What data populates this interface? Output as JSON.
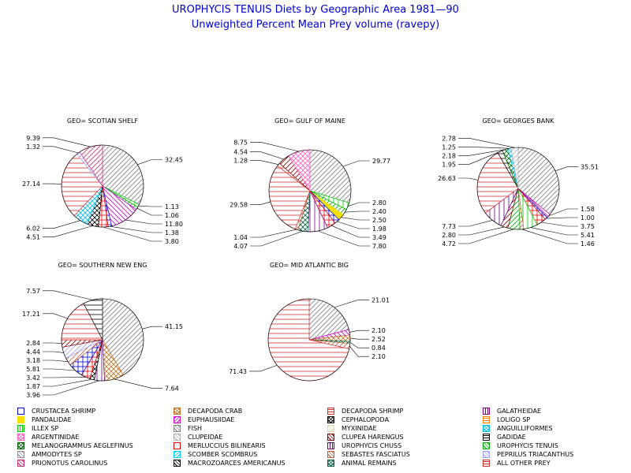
{
  "title": "UROPHYCIS TENUIS Diets by Geographic Area 1981—90",
  "subtitle": "Unweighted Percent Mean Prey volume (ravepy)",
  "categories": [
    {
      "name": "CRUSTACEA SHRIMP",
      "color": "#0000cc",
      "pattern": "box"
    },
    {
      "name": "DECAPODA CRAB",
      "color": "#c07020",
      "pattern": "cross-diag"
    },
    {
      "name": "DECAPODA SHRIMP",
      "color": "#d03030",
      "pattern": "horiz"
    },
    {
      "name": "GALATHEIDAE",
      "color": "#800080",
      "pattern": "vert"
    },
    {
      "name": "PANDALIDAE",
      "color": "#f5e000",
      "pattern": "solid"
    },
    {
      "name": "EUPHAUSIIDAE",
      "color": "#cc00cc",
      "pattern": "diag-back"
    },
    {
      "name": "CEPHALOPODA",
      "color": "#000000",
      "pattern": "cross-diag"
    },
    {
      "name": "LOLIGO SP",
      "color": "#ff8000",
      "pattern": "horiz"
    },
    {
      "name": "ILLEX SP",
      "color": "#00cc00",
      "pattern": "vert"
    },
    {
      "name": "FISH",
      "color": "#808080",
      "pattern": "diag-fwd"
    },
    {
      "name": "MYXINIDAE",
      "color": "#e0e0a0",
      "pattern": "diag-back"
    },
    {
      "name": "ANGUILLIFORMES",
      "color": "#00bbee",
      "pattern": "cross-diag"
    },
    {
      "name": "ARGENTINIDAE",
      "color": "#ff60c0",
      "pattern": "cross-diag"
    },
    {
      "name": "CLUPEIDAE",
      "color": "#b0b0b0",
      "pattern": "diag-fwd"
    },
    {
      "name": "CLUPEA HARENGUS",
      "color": "#800000",
      "pattern": "diag-fwd"
    },
    {
      "name": "GADIDAE",
      "color": "#000000",
      "pattern": "horiz"
    },
    {
      "name": "MELANOGRAMMUS AEGLEFINUS",
      "color": "#006000",
      "pattern": "cross-diag"
    },
    {
      "name": "MERLUCCIUS BILINEARIS",
      "color": "#e00000",
      "pattern": "box"
    },
    {
      "name": "UROPHYCIS CHUSS",
      "color": "#600080",
      "pattern": "vert"
    },
    {
      "name": "UROPHYCIS TENUIS",
      "color": "#00aa00",
      "pattern": "diag-fwd"
    },
    {
      "name": "AMMODYTES SP",
      "color": "#909090",
      "pattern": "diag-fwd"
    },
    {
      "name": "SCOMBER SCOMBRUS",
      "color": "#00ccff",
      "pattern": "diag-back"
    },
    {
      "name": "SEBASTES FASCIATUS",
      "color": "#c06040",
      "pattern": "diag-fwd"
    },
    {
      "name": "PEPRILUS TRIACANTHUS",
      "color": "#a0a0ff",
      "pattern": "diag-fwd"
    },
    {
      "name": "PRIONOTUS CAROLINUS",
      "color": "#cc3070",
      "pattern": "diag-fwd"
    },
    {
      "name": "MACROZOARCES AMERICANUS",
      "color": "#000000",
      "pattern": "diag-fwd"
    },
    {
      "name": "ANIMAL REMAINS",
      "color": "#006040",
      "pattern": "cross-diag"
    },
    {
      "name": "ALL OTHER PREY",
      "color": "#d03030",
      "pattern": "horiz"
    }
  ],
  "chart_data": [
    {
      "type": "pie",
      "title": "GEO= SCOTIAN SHELF",
      "slices": [
        {
          "category": "FISH",
          "value": 32.45,
          "label": "32.45"
        },
        {
          "category": "ILLEX SP",
          "value": 1.13,
          "label": "1.13"
        },
        {
          "category": "UROPHYCIS TENUIS",
          "value": 1.06,
          "label": "1.06"
        },
        {
          "category": "EUPHAUSIIDAE",
          "value": 11.8,
          "label": "11.80"
        },
        {
          "category": "CRUSTACEA SHRIMP",
          "value": 1.38,
          "label": "1.38"
        },
        {
          "category": "MERLUCCIUS BILINEARIS",
          "value": 3.8,
          "label": "3.80"
        },
        {
          "category": "CEPHALOPODA",
          "value": 4.51,
          "label": "4.51"
        },
        {
          "category": "ANGUILLIFORMES",
          "value": 6.02,
          "label": "6.02"
        },
        {
          "category": "ALL OTHER PREY",
          "value": 27.14,
          "label": "27.14"
        },
        {
          "category": "PEPRILUS TRIACANTHUS",
          "value": 1.32,
          "label": "1.32"
        },
        {
          "category": "PRIONOTUS CAROLINUS",
          "value": 9.39,
          "label": "9.39"
        }
      ]
    },
    {
      "type": "pie",
      "title": "GEO= GULF OF MAINE",
      "slices": [
        {
          "category": "FISH",
          "value": 29.77,
          "label": "29.77"
        },
        {
          "category": "ILLEX SP",
          "value": 2.8,
          "label": "2.80"
        },
        {
          "category": "UROPHYCIS TENUIS",
          "value": 2.4,
          "label": "2.40"
        },
        {
          "category": "PANDALIDAE",
          "value": 2.5,
          "label": "2.50"
        },
        {
          "category": "CRUSTACEA SHRIMP",
          "value": 1.98,
          "label": "1.98"
        },
        {
          "category": "MERLUCCIUS BILINEARIS",
          "value": 3.49,
          "label": "3.49"
        },
        {
          "category": "GALATHEIDAE",
          "value": 7.8,
          "label": "7.80"
        },
        {
          "category": "ANIMAL REMAINS",
          "value": 4.07,
          "label": "4.07"
        },
        {
          "category": "SEBASTES FASCIATUS",
          "value": 1.04,
          "label": "1.04"
        },
        {
          "category": "ALL OTHER PREY",
          "value": 29.58,
          "label": "29.58"
        },
        {
          "category": "DECAPODA SHRIMP",
          "value": 1.28,
          "label": "1.28"
        },
        {
          "category": "CLUPEA HARENGUS",
          "value": 4.54,
          "label": "4.54"
        },
        {
          "category": "ARGENTINIDAE",
          "value": 8.75,
          "label": "8.75"
        }
      ]
    },
    {
      "type": "pie",
      "title": "GEO= GEORGES BANK",
      "slices": [
        {
          "category": "FISH",
          "value": 35.51,
          "label": "35.51"
        },
        {
          "category": "EUPHAUSIIDAE",
          "value": 1.58,
          "label": "1.58"
        },
        {
          "category": "CRUSTACEA SHRIMP",
          "value": 1.0,
          "label": "1.00"
        },
        {
          "category": "MERLUCCIUS BILINEARIS",
          "value": 3.75,
          "label": "3.75"
        },
        {
          "category": "ILLEX SP",
          "value": 5.41,
          "label": "5.41"
        },
        {
          "category": "SEBASTES FASCIATUS",
          "value": 1.46,
          "label": "1.46"
        },
        {
          "category": "UROPHYCIS TENUIS",
          "value": 4.72,
          "label": "4.72"
        },
        {
          "category": "CLUPEA HARENGUS",
          "value": 2.8,
          "label": "2.80"
        },
        {
          "category": "UROPHYCIS CHUSS",
          "value": 7.73,
          "label": "7.73"
        },
        {
          "category": "ALL OTHER PREY",
          "value": 26.63,
          "label": "26.63"
        },
        {
          "category": "GADIDAE",
          "value": 1.95,
          "label": "1.95"
        },
        {
          "category": "MELANOGRAMMUS AEGLEFINUS",
          "value": 2.18,
          "label": "2.18"
        },
        {
          "category": "ANGUILLIFORMES",
          "value": 1.25,
          "label": "1.25"
        },
        {
          "category": "CLUPEIDAE",
          "value": 2.78,
          "label": "2.78"
        }
      ]
    },
    {
      "type": "pie",
      "title": "GEO= SOUTHERN NEW ENG",
      "slices": [
        {
          "category": "FISH",
          "value": 41.15,
          "label": "41.15"
        },
        {
          "category": "DECAPODA CRAB",
          "value": 7.64,
          "label": "7.64"
        },
        {
          "category": "UROPHYCIS CHUSS",
          "value": 3.96,
          "label": "3.96"
        },
        {
          "category": "CEPHALOPODA",
          "value": 1.87,
          "label": "1.87"
        },
        {
          "category": "MERLUCCIUS BILINEARIS",
          "value": 3.42,
          "label": "3.42"
        },
        {
          "category": "CRUSTACEA SHRIMP",
          "value": 5.81,
          "label": "5.81"
        },
        {
          "category": "SEBASTES FASCIATUS",
          "value": 3.18,
          "label": "3.18"
        },
        {
          "category": "PEPRILUS TRIACANTHUS",
          "value": 4.44,
          "label": "4.44"
        },
        {
          "category": "CLUPEA HARENGUS",
          "value": 2.84,
          "label": "2.84"
        },
        {
          "category": "ALL OTHER PREY",
          "value": 17.21,
          "label": "17.21"
        },
        {
          "category": "GADIDAE",
          "value": 7.57,
          "label": "7.57"
        }
      ]
    },
    {
      "type": "pie",
      "title": "GEO= MID ATLANTIC BIG",
      "slices": [
        {
          "category": "FISH",
          "value": 21.01,
          "label": "21.01"
        },
        {
          "category": "EUPHAUSIIDAE",
          "value": 2.1,
          "label": "2.10"
        },
        {
          "category": "DECAPODA CRAB",
          "value": 2.52,
          "label": "2.52"
        },
        {
          "category": "ANIMAL REMAINS",
          "value": 0.84,
          "label": "0.84"
        },
        {
          "category": "SEBASTES FASCIATUS",
          "value": 2.1,
          "label": "2.10"
        },
        {
          "category": "ALL OTHER PREY",
          "value": 71.43,
          "label": "71.43"
        }
      ]
    }
  ]
}
